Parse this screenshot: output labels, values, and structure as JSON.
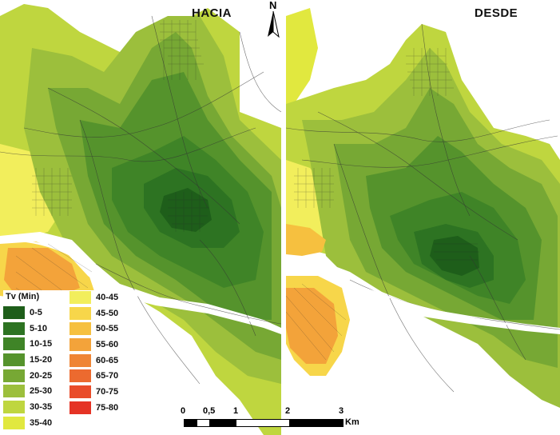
{
  "panels": {
    "left_title": "HACIA",
    "right_title": "DESDE"
  },
  "north_arrow": {
    "label": "N",
    "icon": "north-arrow-icon"
  },
  "legend": {
    "title": "Tv (Min)",
    "classes": [
      {
        "label": "0-5",
        "color": "#1e5e1a"
      },
      {
        "label": "5-10",
        "color": "#2d7322"
      },
      {
        "label": "10-15",
        "color": "#3f8427"
      },
      {
        "label": "15-20",
        "color": "#55932c"
      },
      {
        "label": "20-25",
        "color": "#77a834"
      },
      {
        "label": "25-30",
        "color": "#9cbf3c"
      },
      {
        "label": "30-35",
        "color": "#bfd63f"
      },
      {
        "label": "35-40",
        "color": "#e1e83f"
      },
      {
        "label": "40-45",
        "color": "#f2ee5c"
      },
      {
        "label": "45-50",
        "color": "#f7d64a"
      },
      {
        "label": "50-55",
        "color": "#f6c03f"
      },
      {
        "label": "55-60",
        "color": "#f3a33a"
      },
      {
        "label": "60-65",
        "color": "#ef8535"
      },
      {
        "label": "65-70",
        "color": "#ec6a2f"
      },
      {
        "label": "70-75",
        "color": "#e94c2a"
      },
      {
        "label": "75-80",
        "color": "#e53325"
      }
    ]
  },
  "scale_bar": {
    "ticks": [
      "0",
      "0,5",
      "1",
      "2",
      "3"
    ],
    "unit": "Km"
  }
}
